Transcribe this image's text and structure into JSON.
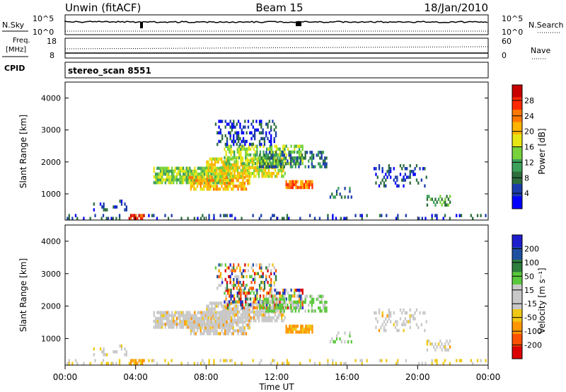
{
  "header": {
    "station": "Unwin (fitACF)",
    "beam": "Beam 15",
    "date": "18/Jan/2010"
  },
  "panel_labels": {
    "nsky": "N.Sky",
    "nsearch": "N.Search",
    "freq": "Freq.",
    "mhz": "[MHz]",
    "nave": "Nave",
    "cpid": "CPID",
    "cpid_value": "stereo_scan 8551",
    "pow_top": "10^5",
    "pow_bot": "10^0",
    "freq_top": "18",
    "freq_bot": "8",
    "nave_top": "60",
    "nave_bot": "0"
  },
  "colors": {
    "power": [
      "#0000ff",
      "#1a3caa",
      "#2d6e3c",
      "#3ca05a",
      "#78d23c",
      "#e6e614",
      "#ffb400",
      "#ff7800",
      "#ff2800",
      "#c80000"
    ],
    "velocity": [
      "#1e1ecc",
      "#1e50a0",
      "#2d7d3c",
      "#5ac83c",
      "#c8c8c8",
      "#c8c8c8",
      "#f0c814",
      "#ff9600",
      "#ff5000",
      "#dc0000"
    ]
  },
  "chart_data": [
    {
      "type": "heatmap",
      "title": "Power",
      "ylabel": "Slant Range [km]",
      "ylim": [
        180,
        4500
      ],
      "yticks": [
        "1000",
        "2000",
        "3000",
        "4000"
      ],
      "colorbar_label": "Power [dB]",
      "colorbar_ticks": [
        "4",
        "8",
        "12",
        "16",
        "20",
        "24",
        "28"
      ],
      "scale": [
        0,
        30
      ]
    },
    {
      "type": "heatmap",
      "title": "Velocity",
      "ylabel": "Slant Range [km]",
      "ylim": [
        180,
        4500
      ],
      "yticks": [
        "1000",
        "2000",
        "3000",
        "4000"
      ],
      "colorbar_label": "Velocity [m s⁻¹]",
      "colorbar_ticks": [
        "200",
        "100",
        "50",
        "15",
        "-15",
        "-50",
        "-100",
        "-200"
      ],
      "scale": [
        -250,
        250
      ]
    }
  ],
  "xaxis": {
    "label": "Time UT",
    "ticks": [
      "00:00",
      "04:00",
      "08:00",
      "12:00",
      "16:00",
      "20:00",
      "00:00"
    ],
    "xlim_hours": [
      0,
      24
    ]
  }
}
